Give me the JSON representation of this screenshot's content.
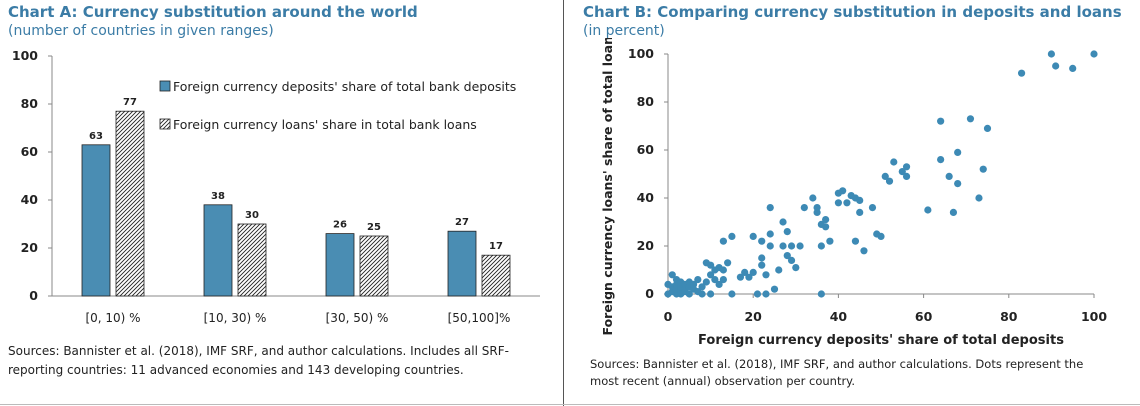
{
  "chart_a": {
    "title": "Chart A: Currency substitution around the world",
    "subtitle": "(number of countries in given ranges)",
    "source": "Sources: Bannister et al. (2018), IMF SRF, and author calculations. Includes all SRF-reporting countries: 11 advanced economies and 143 developing countries."
  },
  "chart_b": {
    "title": "Chart B: Comparing currency substitution in deposits and loans",
    "subtitle": "(in percent)",
    "source": "Sources: Bannister et al. (2018), IMF SRF, and author calculations. Dots represent the most recent (annual) observation per country."
  },
  "colors": {
    "title": "#3b7ca6",
    "bar": "#4a8db3",
    "dot": "#3d8ab5"
  },
  "chart_data": [
    {
      "type": "bar",
      "categories": [
        "[0, 10) %",
        "[10, 30) %",
        "[30, 50) %",
        "[50,100]%"
      ],
      "series": [
        {
          "name": "Foreign currency deposits' share of total bank deposits",
          "values": [
            63,
            38,
            26,
            27
          ],
          "style": "solid"
        },
        {
          "name": "Foreign currency loans' share in total bank loans",
          "values": [
            77,
            30,
            25,
            17
          ],
          "style": "hatched"
        }
      ],
      "ylim": [
        0,
        100
      ],
      "yticks": [
        0,
        20,
        40,
        60,
        80,
        100
      ],
      "legend": "top-right",
      "grid": false
    },
    {
      "type": "scatter",
      "xlabel": "Foreign currency deposits' share of total deposits",
      "ylabel": "Foreign currency loans' share of total loans",
      "xlim": [
        0,
        100
      ],
      "ylim": [
        0,
        100
      ],
      "xticks": [
        0,
        20,
        40,
        60,
        80,
        100
      ],
      "yticks": [
        0,
        20,
        40,
        60,
        80,
        100
      ],
      "grid": false,
      "points": [
        [
          0,
          0
        ],
        [
          0,
          4
        ],
        [
          1,
          1
        ],
        [
          1,
          3
        ],
        [
          1,
          8
        ],
        [
          2,
          0
        ],
        [
          2,
          2
        ],
        [
          2,
          4
        ],
        [
          2,
          6
        ],
        [
          3,
          1
        ],
        [
          3,
          3
        ],
        [
          3,
          5
        ],
        [
          3,
          0
        ],
        [
          4,
          2
        ],
        [
          4,
          4
        ],
        [
          4,
          1
        ],
        [
          5,
          3
        ],
        [
          5,
          0
        ],
        [
          5,
          5
        ],
        [
          6,
          2
        ],
        [
          6,
          4
        ],
        [
          7,
          1
        ],
        [
          7,
          6
        ],
        [
          8,
          3
        ],
        [
          8,
          0
        ],
        [
          9,
          5
        ],
        [
          9,
          13
        ],
        [
          10,
          0
        ],
        [
          10,
          8
        ],
        [
          10,
          12
        ],
        [
          11,
          6
        ],
        [
          11,
          10
        ],
        [
          12,
          4
        ],
        [
          12,
          11
        ],
        [
          13,
          6
        ],
        [
          13,
          10
        ],
        [
          13,
          22
        ],
        [
          14,
          13
        ],
        [
          15,
          0
        ],
        [
          15,
          24
        ],
        [
          17,
          7
        ],
        [
          18,
          9
        ],
        [
          19,
          7
        ],
        [
          20,
          9
        ],
        [
          20,
          24
        ],
        [
          21,
          0
        ],
        [
          22,
          12
        ],
        [
          22,
          15
        ],
        [
          22,
          22
        ],
        [
          23,
          0
        ],
        [
          23,
          8
        ],
        [
          24,
          20
        ],
        [
          24,
          25
        ],
        [
          24,
          36
        ],
        [
          25,
          2
        ],
        [
          26,
          10
        ],
        [
          27,
          20
        ],
        [
          27,
          30
        ],
        [
          28,
          26
        ],
        [
          28,
          16
        ],
        [
          29,
          14
        ],
        [
          29,
          20
        ],
        [
          30,
          11
        ],
        [
          31,
          20
        ],
        [
          32,
          36
        ],
        [
          34,
          40
        ],
        [
          35,
          34
        ],
        [
          35,
          36
        ],
        [
          36,
          29
        ],
        [
          36,
          20
        ],
        [
          36,
          0
        ],
        [
          37,
          31
        ],
        [
          37,
          28
        ],
        [
          38,
          22
        ],
        [
          40,
          38
        ],
        [
          40,
          42
        ],
        [
          41,
          43
        ],
        [
          42,
          38
        ],
        [
          43,
          41
        ],
        [
          44,
          40
        ],
        [
          44,
          22
        ],
        [
          45,
          34
        ],
        [
          45,
          39
        ],
        [
          46,
          18
        ],
        [
          48,
          36
        ],
        [
          49,
          25
        ],
        [
          50,
          24
        ],
        [
          51,
          49
        ],
        [
          52,
          47
        ],
        [
          53,
          55
        ],
        [
          55,
          51
        ],
        [
          56,
          53
        ],
        [
          56,
          49
        ],
        [
          61,
          35
        ],
        [
          64,
          72
        ],
        [
          64,
          56
        ],
        [
          66,
          49
        ],
        [
          67,
          34
        ],
        [
          68,
          46
        ],
        [
          68,
          59
        ],
        [
          71,
          73
        ],
        [
          73,
          40
        ],
        [
          74,
          52
        ],
        [
          75,
          69
        ],
        [
          83,
          92
        ],
        [
          90,
          100
        ],
        [
          91,
          95
        ],
        [
          95,
          94
        ],
        [
          100,
          100
        ]
      ]
    }
  ]
}
